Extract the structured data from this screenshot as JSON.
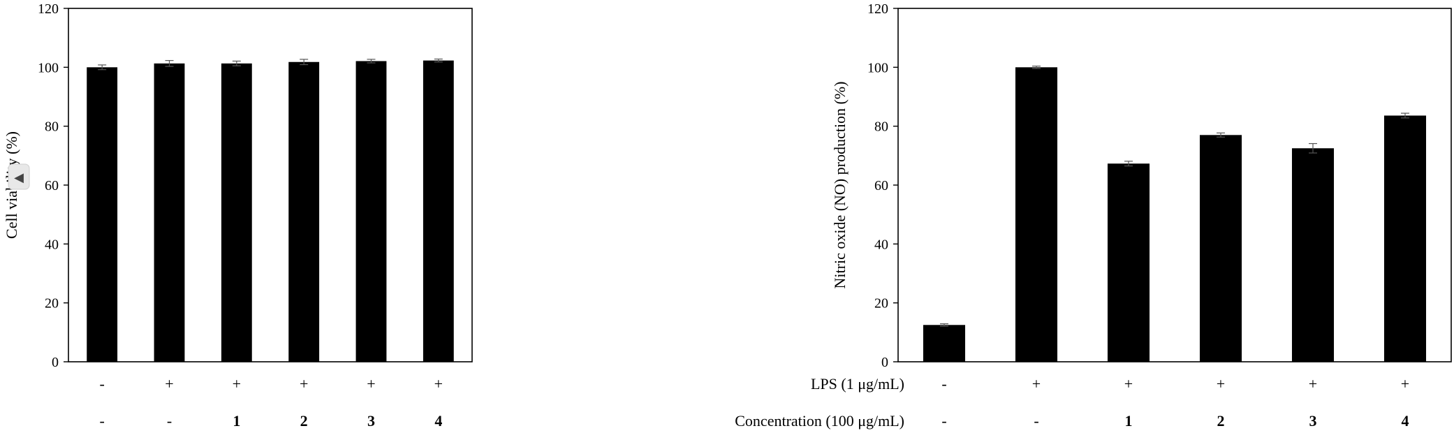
{
  "chart_data": [
    {
      "type": "bar",
      "title": "",
      "ylabel": "Cell viability (%)",
      "ylim": [
        0,
        120
      ],
      "yticks": [
        0,
        20,
        40,
        60,
        80,
        100,
        120
      ],
      "grid": false,
      "bar_color": "#000000",
      "values": [
        100.0,
        101.3,
        101.3,
        101.8,
        102.1,
        102.3
      ],
      "errors": [
        0.8,
        1.0,
        0.8,
        0.9,
        0.6,
        0.5
      ],
      "rows": [
        {
          "label": "",
          "symbols": [
            "-",
            "+",
            "+",
            "+",
            "+",
            "+"
          ]
        },
        {
          "label": "",
          "symbols": [
            "-",
            "-",
            "1",
            "2",
            "3",
            "4"
          ]
        }
      ],
      "overlay_control": "◀"
    },
    {
      "type": "bar",
      "title": "",
      "ylabel": "Nitric oxide (NO) production (%)",
      "ylim": [
        0,
        120
      ],
      "yticks": [
        0,
        20,
        40,
        60,
        80,
        100,
        120
      ],
      "grid": false,
      "bar_color": "#000000",
      "values": [
        12.5,
        100.0,
        67.3,
        77.0,
        72.5,
        83.6
      ],
      "errors": [
        0.4,
        0.4,
        0.8,
        0.7,
        1.6,
        0.8
      ],
      "rows": [
        {
          "label": "LPS (1 μg/mL)",
          "symbols": [
            "-",
            "+",
            "+",
            "+",
            "+",
            "+"
          ]
        },
        {
          "label": "Concentration (100 μg/mL)",
          "symbols": [
            "-",
            "-",
            "1",
            "2",
            "3",
            "4"
          ]
        }
      ]
    }
  ]
}
